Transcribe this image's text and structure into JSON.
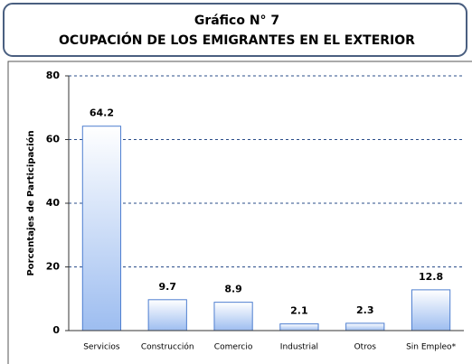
{
  "chart_data": {
    "type": "bar",
    "title": "Gráfico N° 7",
    "subtitle": "OCUPACIÓN DE LOS EMIGRANTES EN EL EXTERIOR",
    "ylabel": "Porcentajes de Participación",
    "categories": [
      "Servicios",
      "Construcción",
      "Comercio",
      "Industrial",
      "Otros",
      "Sin Empleo*"
    ],
    "values": [
      64.2,
      9.7,
      8.9,
      2.1,
      2.3,
      12.8
    ],
    "color": "#9dbdf0",
    "edge_color": "#4f7fd0",
    "ylim": [
      0,
      80
    ],
    "yticks": [
      0,
      20,
      40,
      60,
      80
    ],
    "grid": true
  }
}
